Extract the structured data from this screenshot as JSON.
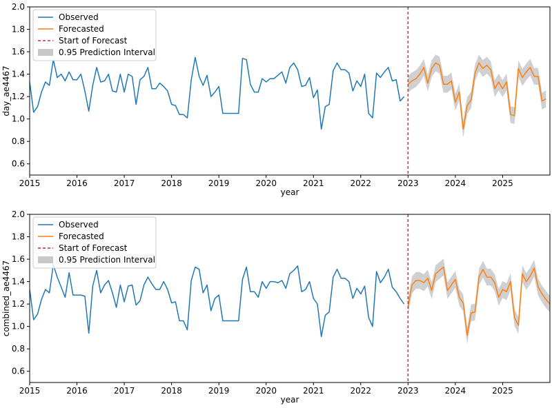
{
  "chart_data": [
    {
      "type": "line",
      "title": "",
      "xlabel": "year",
      "ylabel": "day_ae4467",
      "xlim": [
        "2015-01",
        "2026-01"
      ],
      "ylim": [
        0.5,
        2.0
      ],
      "xticks": [
        "2015",
        "2016",
        "2017",
        "2018",
        "2019",
        "2020",
        "2021",
        "2022",
        "2023",
        "2024",
        "2025"
      ],
      "yticks": [
        "0.6",
        "0.8",
        "1.0",
        "1.2",
        "1.4",
        "1.6",
        "1.8",
        "2.0"
      ],
      "grid": false,
      "legend_position": "top-left",
      "forecast_start": "2023-01",
      "series": [
        {
          "name": "Observed",
          "color": "#1f77b4",
          "start": "2015-01",
          "values": [
            1.33,
            1.06,
            1.11,
            1.24,
            1.33,
            1.3,
            1.53,
            1.37,
            1.4,
            1.34,
            1.42,
            1.35,
            1.35,
            1.4,
            1.25,
            1.07,
            1.3,
            1.46,
            1.33,
            1.34,
            1.4,
            1.25,
            1.24,
            1.4,
            1.24,
            1.4,
            1.38,
            1.13,
            1.35,
            1.38,
            1.46,
            1.27,
            1.27,
            1.32,
            1.29,
            1.25,
            1.13,
            1.12,
            1.04,
            1.04,
            1.01,
            1.35,
            1.55,
            1.38,
            1.3,
            1.39,
            1.2,
            1.24,
            1.29,
            1.05,
            1.05,
            1.05,
            1.05,
            1.05,
            1.54,
            1.53,
            1.31,
            1.24,
            1.24,
            1.36,
            1.33,
            1.36,
            1.36,
            1.39,
            1.42,
            1.32,
            1.46,
            1.5,
            1.44,
            1.29,
            1.3,
            1.37,
            1.19,
            1.26,
            0.91,
            1.11,
            1.13,
            1.43,
            1.5,
            1.44,
            1.44,
            1.41,
            1.25,
            1.34,
            1.29,
            1.4,
            1.05,
            1.01,
            1.41,
            1.37,
            1.42,
            1.46,
            1.34,
            1.35,
            1.16,
            1.2
          ]
        },
        {
          "name": "Forecasted",
          "color": "#ff7f0e",
          "start": "2023-01",
          "values": [
            1.31,
            1.34,
            1.36,
            1.4,
            1.46,
            1.32,
            1.45,
            1.5,
            1.48,
            1.31,
            1.31,
            1.34,
            1.15,
            1.24,
            0.91,
            1.12,
            1.17,
            1.41,
            1.5,
            1.45,
            1.48,
            1.44,
            1.27,
            1.33,
            1.27,
            1.33,
            1.04,
            1.03,
            1.45,
            1.37,
            1.42,
            1.46,
            1.38,
            1.38,
            1.16,
            1.18
          ]
        }
      ],
      "interval": {
        "name": "0.95 Prediction Interval",
        "color": "#c8c8c8",
        "halfwidth": 0.075
      },
      "forecast_line": {
        "name": "Start of Forecast",
        "color": "#d62728"
      }
    },
    {
      "type": "line",
      "title": "",
      "xlabel": "year",
      "ylabel": "combined_ae4467",
      "xlim": [
        "2015-01",
        "2026-01"
      ],
      "ylim": [
        0.5,
        2.0
      ],
      "xticks": [
        "2015",
        "2016",
        "2017",
        "2018",
        "2019",
        "2020",
        "2021",
        "2022",
        "2023",
        "2024",
        "2025"
      ],
      "yticks": [
        "0.6",
        "0.8",
        "1.0",
        "1.2",
        "1.4",
        "1.6",
        "1.8",
        "2.0"
      ],
      "grid": false,
      "legend_position": "top-left",
      "forecast_start": "2023-01",
      "series": [
        {
          "name": "Observed",
          "color": "#1f77b4",
          "start": "2015-01",
          "values": [
            1.33,
            1.06,
            1.11,
            1.24,
            1.33,
            1.3,
            1.55,
            1.44,
            1.35,
            1.26,
            1.48,
            1.28,
            1.28,
            1.28,
            1.27,
            0.94,
            1.36,
            1.5,
            1.3,
            1.37,
            1.41,
            1.3,
            1.17,
            1.37,
            1.22,
            1.36,
            1.37,
            1.19,
            1.23,
            1.37,
            1.44,
            1.38,
            1.33,
            1.33,
            1.4,
            1.33,
            1.21,
            1.22,
            1.05,
            1.05,
            0.97,
            1.41,
            1.53,
            1.51,
            1.3,
            1.37,
            1.14,
            1.25,
            1.28,
            1.05,
            1.05,
            1.05,
            1.05,
            1.05,
            1.42,
            1.53,
            1.31,
            1.31,
            1.26,
            1.4,
            1.34,
            1.4,
            1.4,
            1.39,
            1.41,
            1.34,
            1.47,
            1.5,
            1.54,
            1.31,
            1.33,
            1.4,
            1.25,
            1.2,
            0.91,
            1.1,
            1.13,
            1.44,
            1.51,
            1.43,
            1.43,
            1.4,
            1.25,
            1.34,
            1.29,
            1.36,
            1.08,
            1.0,
            1.49,
            1.39,
            1.44,
            1.51,
            1.35,
            1.31,
            1.25,
            1.2
          ]
        },
        {
          "name": "Forecasted",
          "color": "#ff7f0e",
          "start": "2023-01",
          "values": [
            1.18,
            1.37,
            1.41,
            1.41,
            1.39,
            1.43,
            1.32,
            1.47,
            1.5,
            1.53,
            1.32,
            1.37,
            1.42,
            1.26,
            1.21,
            0.92,
            1.12,
            1.13,
            1.44,
            1.51,
            1.44,
            1.44,
            1.39,
            1.26,
            1.33,
            1.31,
            1.4,
            1.08,
            1.01,
            1.47,
            1.4,
            1.45,
            1.52,
            1.35,
            1.29,
            1.24,
            1.2
          ]
        }
      ],
      "interval": {
        "name": "0.95 Prediction Interval",
        "color": "#c8c8c8",
        "halfwidth": 0.075
      },
      "forecast_line": {
        "name": "Start of Forecast",
        "color": "#d62728"
      }
    }
  ]
}
